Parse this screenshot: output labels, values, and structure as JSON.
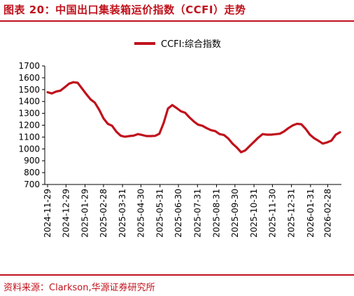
{
  "figure": {
    "title": "图表 20：中国出口集装箱运价指数（CCFI）走势",
    "source": "资料来源：Clarkson,华源证券研究所"
  },
  "colors": {
    "accent": "#c0121c",
    "series": "#c0121c"
  },
  "chart_data": {
    "type": "line",
    "xlabel": "",
    "ylabel": "",
    "ylim": [
      700,
      1700
    ],
    "yticks": [
      700,
      800,
      900,
      1000,
      1100,
      1200,
      1300,
      1400,
      1500,
      1600,
      1700
    ],
    "xticks": [
      "2024-11-29",
      "2024-12-29",
      "2025-01-29",
      "2025-02-28",
      "2025-03-31",
      "2025-04-30",
      "2025-05-31",
      "2025-06-30",
      "2025-07-31",
      "2025-08-31",
      "2025-09-30",
      "2025-10-31",
      "2025-11-30",
      "2025-12-31",
      "2026-01-31",
      "2026-02-28"
    ],
    "grid": false,
    "legend": "top-center",
    "series": [
      {
        "name": "CCFI:综合指数",
        "x": [
          "2024-11-29",
          "2024-12-06",
          "2024-12-13",
          "2024-12-20",
          "2024-12-27",
          "2025-01-03",
          "2025-01-10",
          "2025-01-17",
          "2025-01-24",
          "2025-01-31",
          "2025-02-07",
          "2025-02-14",
          "2025-02-21",
          "2025-02-28",
          "2025-03-07",
          "2025-03-14",
          "2025-03-21",
          "2025-03-28",
          "2025-04-04",
          "2025-04-11",
          "2025-04-18",
          "2025-04-25",
          "2025-05-02",
          "2025-05-09",
          "2025-05-16",
          "2025-05-23",
          "2025-05-30",
          "2025-06-06",
          "2025-06-13",
          "2025-06-20",
          "2025-06-27",
          "2025-07-04",
          "2025-07-11",
          "2025-07-18",
          "2025-07-25",
          "2025-08-01",
          "2025-08-08",
          "2025-08-15",
          "2025-08-22",
          "2025-08-29",
          "2025-09-05",
          "2025-09-12",
          "2025-09-19",
          "2025-09-26",
          "2025-10-03",
          "2025-10-10",
          "2025-10-17",
          "2025-10-24",
          "2025-10-31",
          "2025-11-07",
          "2025-11-14",
          "2025-11-21",
          "2025-11-28",
          "2025-12-05",
          "2025-12-12",
          "2025-12-19",
          "2025-12-26",
          "2026-01-02",
          "2026-01-09",
          "2026-01-16",
          "2026-01-23",
          "2026-01-30",
          "2026-02-06",
          "2026-02-13",
          "2026-02-20",
          "2026-02-27",
          "2026-03-06",
          "2026-03-13",
          "2026-03-20"
        ],
        "values": [
          1478,
          1468,
          1484,
          1492,
          1520,
          1550,
          1563,
          1558,
          1510,
          1462,
          1418,
          1390,
          1330,
          1258,
          1212,
          1195,
          1145,
          1112,
          1103,
          1108,
          1112,
          1125,
          1118,
          1108,
          1108,
          1110,
          1128,
          1220,
          1340,
          1370,
          1345,
          1318,
          1305,
          1265,
          1232,
          1205,
          1195,
          1175,
          1158,
          1150,
          1125,
          1118,
          1088,
          1045,
          1012,
          972,
          988,
          1025,
          1060,
          1095,
          1125,
          1120,
          1120,
          1124,
          1128,
          1148,
          1175,
          1198,
          1212,
          1208,
          1170,
          1120,
          1090,
          1068,
          1045,
          1055,
          1070,
          1120,
          1140
        ]
      }
    ]
  }
}
